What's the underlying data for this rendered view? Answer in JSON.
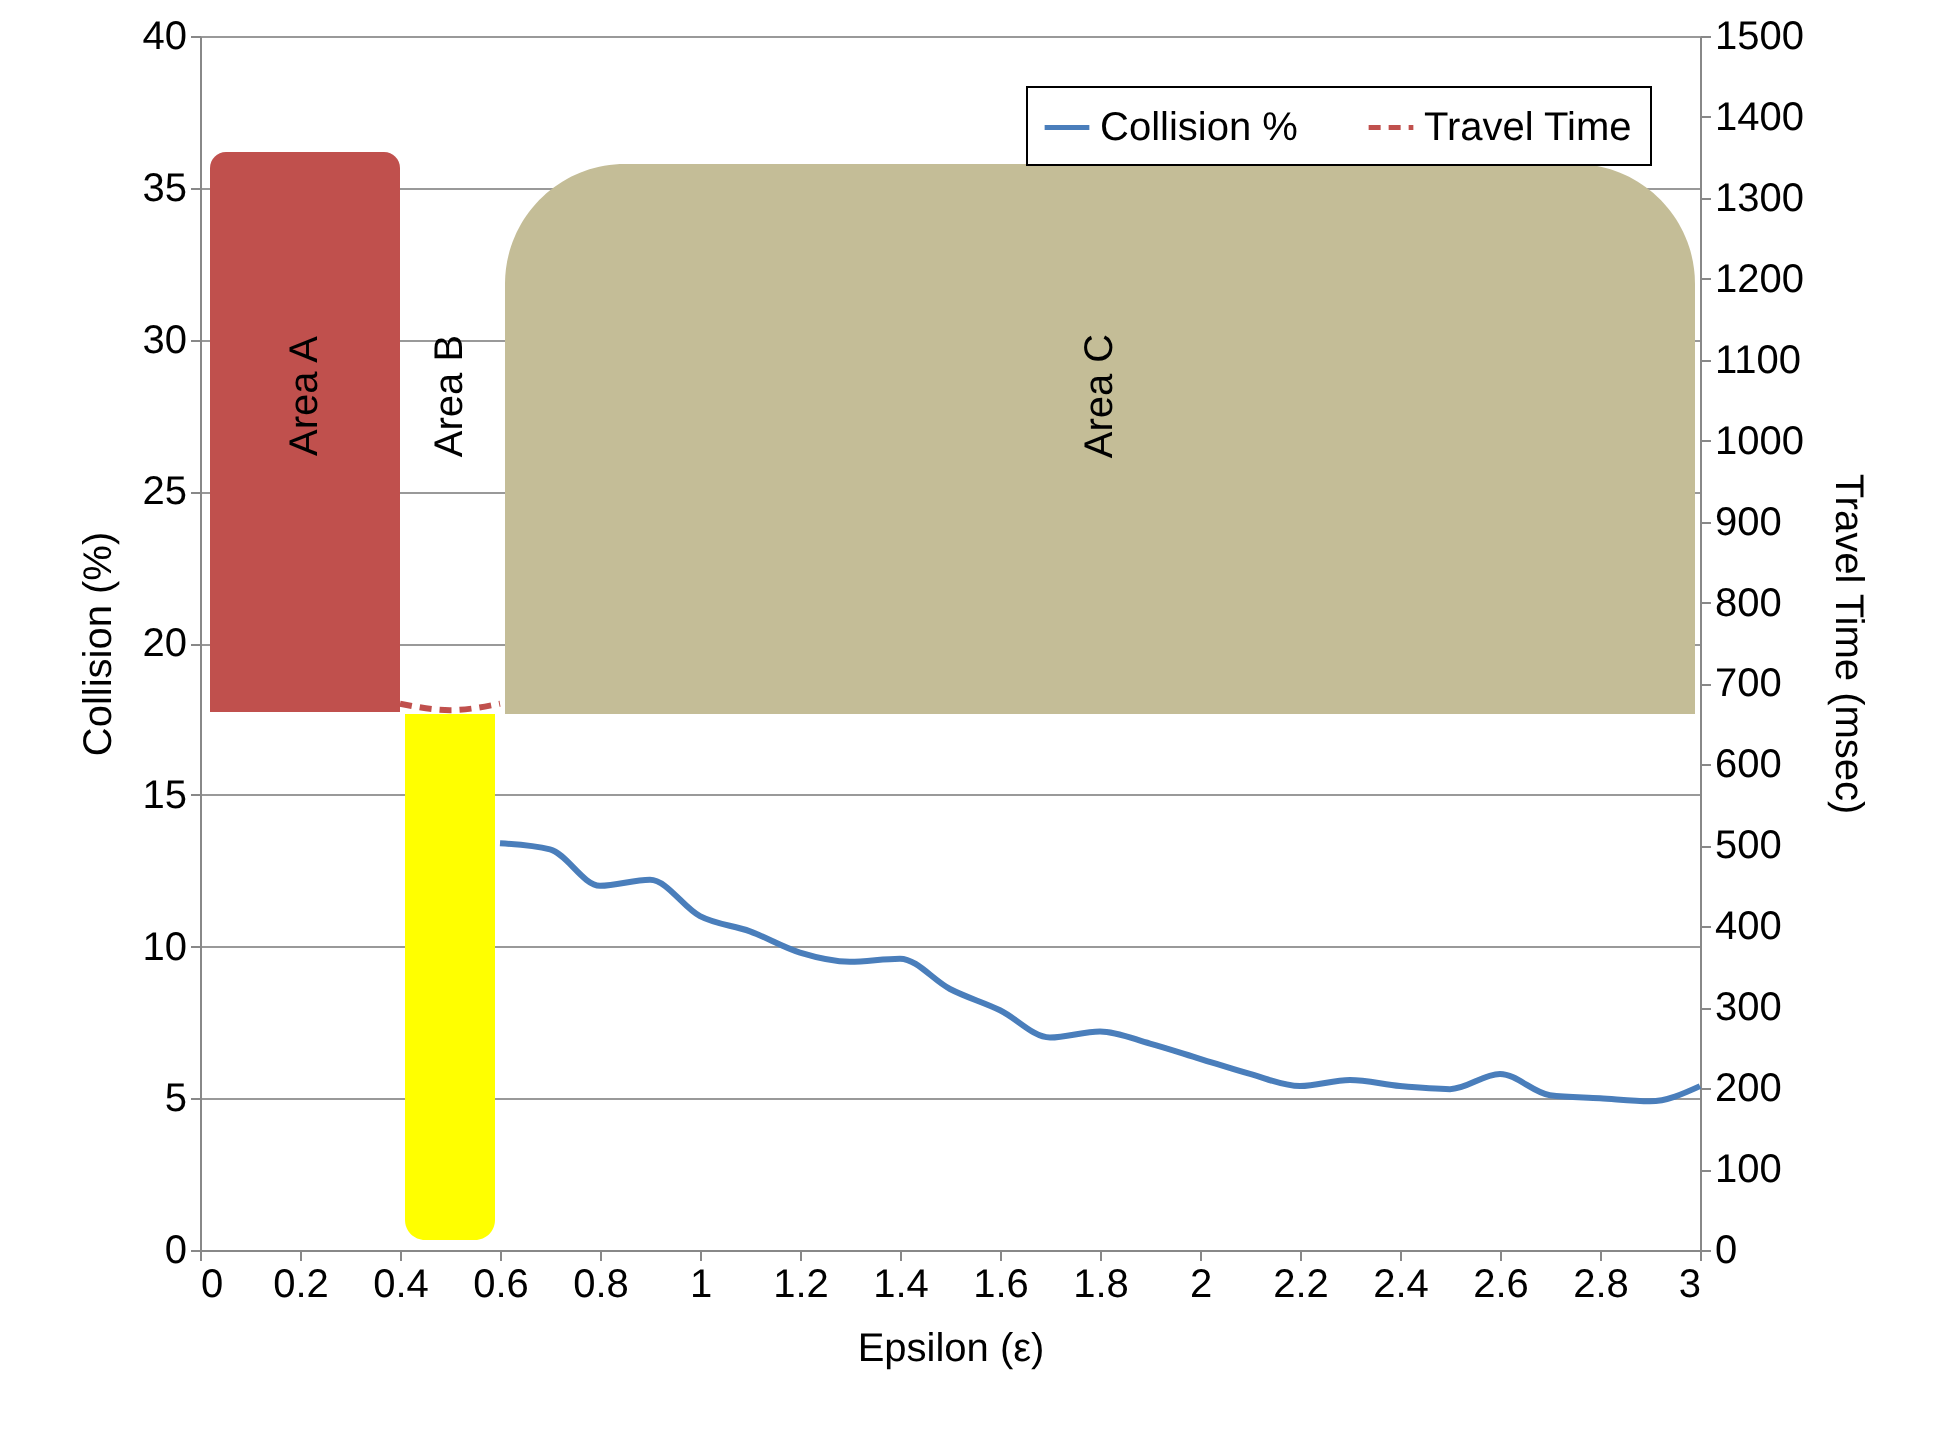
{
  "chart_data": {
    "type": "line",
    "xlabel": "Epsilon (ε)",
    "ylabel": "Collision (%)",
    "y2label": "Travel Time (msec)",
    "xlim": [
      0,
      3
    ],
    "xticks": [
      0,
      0.2,
      0.4,
      0.6,
      0.8,
      1,
      1.2,
      1.4,
      1.6,
      1.8,
      2,
      2.2,
      2.4,
      2.6,
      2.8,
      3
    ],
    "ylim": [
      0,
      40
    ],
    "yticks": [
      0,
      5,
      10,
      15,
      20,
      25,
      30,
      35,
      40
    ],
    "y2lim": [
      0,
      1500
    ],
    "y2ticks": [
      0,
      100,
      200,
      300,
      400,
      500,
      600,
      700,
      800,
      900,
      1000,
      1100,
      1200,
      1300,
      1400,
      1500
    ],
    "grid": "y",
    "legend": "top right",
    "annotations": [
      "Area B"
    ],
    "series": [
      {
        "name": "Collision %",
        "color": "#4a7ebb",
        "line_style": "solid",
        "x": [
          0.6,
          0.7,
          0.8,
          0.9,
          1.0,
          1.1,
          1.2,
          1.3,
          1.4,
          1.5,
          1.6,
          1.7,
          1.8,
          1.9,
          2.0,
          2.1,
          2.2,
          2.3,
          2.4,
          2.5,
          2.6,
          2.7,
          2.8,
          2.9,
          3.0
        ],
        "values": [
          13.4,
          13.2,
          12.0,
          12.2,
          11.0,
          10.5,
          9.8,
          9.5,
          9.6,
          8.6,
          7.9,
          7.0,
          7.2,
          6.8,
          6.3,
          5.8,
          5.4,
          5.6,
          5.4,
          5.3,
          5.8,
          5.1,
          5.0,
          4.9,
          5.4
        ]
      },
      {
        "name": "Travel Time",
        "color": "#c0504d",
        "line_style": "dashed",
        "axis": "y2",
        "x": [
          0.4,
          0.5,
          0.6
        ],
        "values": [
          675,
          667,
          675
        ]
      }
    ],
    "bands": [
      {
        "axis": "x",
        "from": 0.02,
        "to": 0.4,
        "label": "Area A",
        "color": "#c0504d"
      },
      {
        "axis": "x",
        "from": 0.41,
        "to": 0.59,
        "color": "#ffff00"
      },
      {
        "axis": "x",
        "from": 0.61,
        "to": 2.99,
        "label": "Area C",
        "color": "#c4bd97"
      }
    ]
  }
}
